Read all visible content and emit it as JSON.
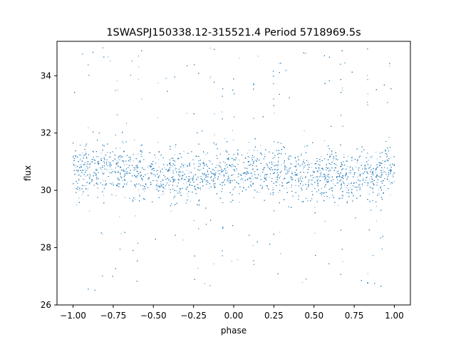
{
  "chart_data": {
    "type": "scatter",
    "title": "1SWASPJ150338.12-315521.4 Period 5718969.5s",
    "xlabel": "phase",
    "ylabel": "flux",
    "xlim": [
      -1.1,
      1.1
    ],
    "ylim": [
      26,
      35.2
    ],
    "xticks": [
      -1.0,
      -0.75,
      -0.5,
      -0.25,
      0.0,
      0.25,
      0.5,
      0.75,
      1.0
    ],
    "xtick_labels": [
      "−1.00",
      "−0.75",
      "−0.50",
      "−0.25",
      "0.00",
      "0.25",
      "0.50",
      "0.75",
      "1.00"
    ],
    "yticks": [
      26,
      28,
      30,
      32,
      34
    ],
    "ytick_labels": [
      "26",
      "28",
      "30",
      "32",
      "34"
    ],
    "grid": false,
    "series": [
      {
        "color": "#1f77b4",
        "marker_size": 0.5,
        "x_range": [
          -1.0,
          1.0
        ],
        "y_range": [
          26.5,
          35.0
        ],
        "core_band": [
          29.5,
          31.8
        ],
        "profile": {
          "phase": [
            -1.0,
            -0.75,
            -0.5,
            -0.45,
            -0.25,
            0.0,
            0.25,
            0.5,
            0.55,
            0.75,
            0.9,
            1.0
          ],
          "median_flux": [
            30.8,
            30.8,
            30.5,
            30.4,
            30.5,
            30.7,
            30.7,
            30.5,
            30.5,
            30.5,
            30.6,
            30.8
          ]
        }
      }
    ]
  }
}
